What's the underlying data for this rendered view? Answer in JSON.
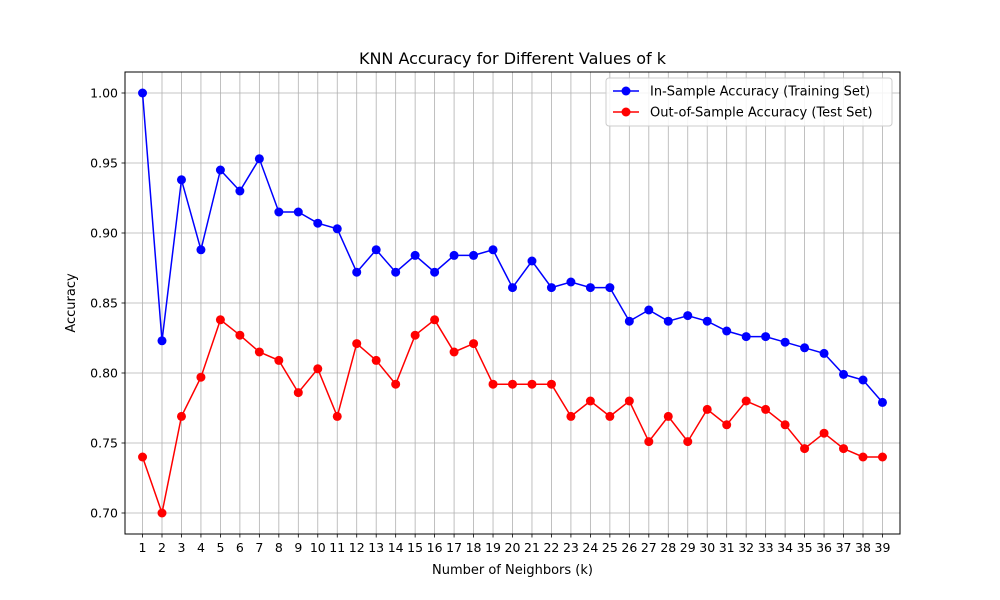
{
  "chart_data": {
    "type": "line",
    "title": "KNN Accuracy for Different Values of k",
    "xlabel": "Number of Neighbors (k)",
    "ylabel": "Accuracy",
    "x": [
      1,
      2,
      3,
      4,
      5,
      6,
      7,
      8,
      9,
      10,
      11,
      12,
      13,
      14,
      15,
      16,
      17,
      18,
      19,
      20,
      21,
      22,
      23,
      24,
      25,
      26,
      27,
      28,
      29,
      30,
      31,
      32,
      33,
      34,
      35,
      36,
      37,
      38,
      39
    ],
    "xlim": [
      0.1,
      39.9
    ],
    "ylim": [
      0.685,
      1.015
    ],
    "yticks": [
      0.7,
      0.75,
      0.8,
      0.85,
      0.9,
      0.95,
      1.0
    ],
    "ytick_labels": [
      "0.70",
      "0.75",
      "0.80",
      "0.85",
      "0.90",
      "0.95",
      "1.00"
    ],
    "grid": true,
    "legend_position": "top-right",
    "series": [
      {
        "name": "In-Sample Accuracy (Training Set)",
        "color": "#0000ff",
        "marker": "circle",
        "values": [
          1.0,
          0.823,
          0.938,
          0.888,
          0.945,
          0.93,
          0.953,
          0.915,
          0.915,
          0.907,
          0.903,
          0.872,
          0.888,
          0.872,
          0.884,
          0.872,
          0.884,
          0.884,
          0.888,
          0.861,
          0.88,
          0.861,
          0.865,
          0.861,
          0.861,
          0.837,
          0.845,
          0.837,
          0.841,
          0.837,
          0.83,
          0.826,
          0.826,
          0.822,
          0.818,
          0.814,
          0.799,
          0.795,
          0.779
        ]
      },
      {
        "name": "Out-of-Sample Accuracy (Test Set)",
        "color": "#ff0000",
        "marker": "circle",
        "values": [
          0.74,
          0.7,
          0.769,
          0.797,
          0.838,
          0.827,
          0.815,
          0.809,
          0.786,
          0.803,
          0.769,
          0.821,
          0.809,
          0.792,
          0.827,
          0.838,
          0.815,
          0.821,
          0.792,
          0.792,
          0.792,
          0.792,
          0.769,
          0.78,
          0.769,
          0.78,
          0.751,
          0.769,
          0.751,
          0.774,
          0.763,
          0.78,
          0.774,
          0.763,
          0.746,
          0.757,
          0.746,
          0.74,
          0.74
        ]
      }
    ]
  }
}
